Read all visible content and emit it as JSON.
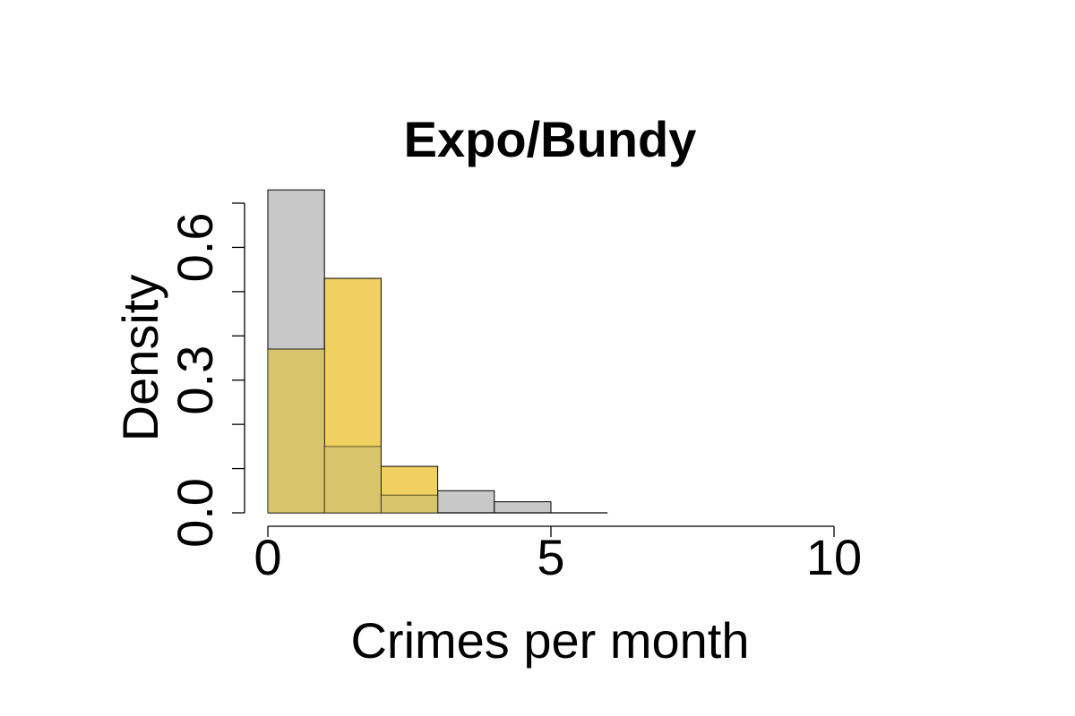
{
  "chart_data": {
    "type": "bar",
    "title": "Expo/Bundy",
    "xlabel": "Crimes per month",
    "ylabel": "Density",
    "xlim": [
      0,
      10
    ],
    "ylim": [
      0,
      0.7
    ],
    "x_ticks": [
      "0",
      "5",
      "10"
    ],
    "y_ticks": [
      "0.0",
      "0.3",
      "0.6"
    ],
    "x_tick_values": [
      0,
      5,
      10
    ],
    "y_tick_values": [
      0,
      0.1,
      0.2,
      0.3,
      0.4,
      0.5,
      0.6,
      0.7
    ],
    "y_tick_labels_at": [
      0,
      0.3,
      0.6
    ],
    "bin_edges": [
      0,
      1,
      2,
      3,
      4,
      5,
      6
    ],
    "grid": false,
    "series": [
      {
        "color": "#c8c8c8",
        "values": [
          0.73,
          0.15,
          0.04,
          0.05,
          0.025,
          0.0
        ]
      },
      {
        "color": "#f0d060",
        "values": [
          0.37,
          0.53,
          0.105,
          0.0,
          0.0,
          0.0
        ]
      }
    ],
    "overlap_color": "#d8c46a"
  }
}
